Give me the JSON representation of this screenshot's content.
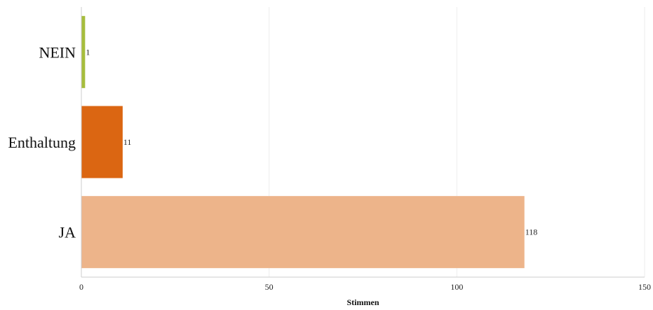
{
  "chart_data": {
    "type": "bar",
    "orientation": "horizontal",
    "categories": [
      "NEIN",
      "Enthaltung",
      "JA"
    ],
    "values": [
      1,
      11,
      118
    ],
    "colors": [
      "#a6bd3c",
      "#db6612",
      "#edb48a"
    ],
    "data_labels": [
      "1",
      "11",
      "118"
    ],
    "xlabel": "Stimmen",
    "ylabel": "",
    "xlim": [
      0,
      150
    ],
    "xticks": [
      0,
      50,
      100,
      150
    ],
    "xtick_labels": [
      "0",
      "50",
      "100",
      "150"
    ],
    "grid": true,
    "legend": "none"
  }
}
